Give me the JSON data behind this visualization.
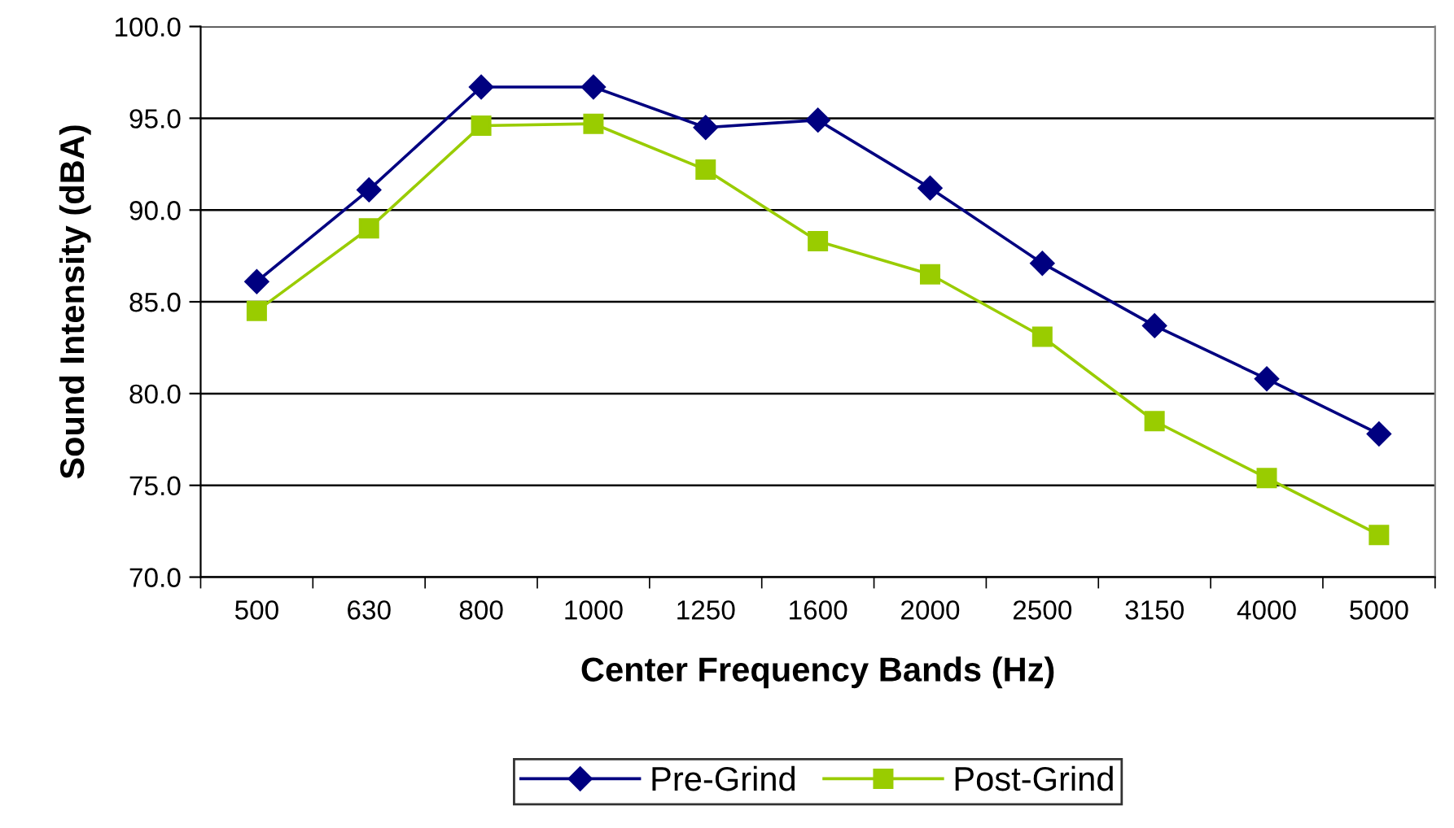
{
  "chart_data": {
    "type": "line",
    "xlabel": "Center Frequency Bands (Hz)",
    "ylabel": "Sound Intensity (dBA)",
    "categories": [
      "500",
      "630",
      "800",
      "1000",
      "1250",
      "1600",
      "2000",
      "2500",
      "3150",
      "4000",
      "5000"
    ],
    "series": [
      {
        "name": "Pre-Grind",
        "color": "#000080",
        "marker": "diamond",
        "values": [
          86.1,
          91.1,
          96.7,
          96.7,
          94.5,
          94.9,
          91.2,
          87.1,
          83.7,
          80.8,
          77.8
        ]
      },
      {
        "name": "Post-Grind",
        "color": "#99cc00",
        "marker": "square",
        "values": [
          84.5,
          89.0,
          94.6,
          94.7,
          92.2,
          88.3,
          86.5,
          83.1,
          78.5,
          75.4,
          72.3
        ]
      }
    ],
    "ylim": [
      70,
      100
    ],
    "yticks": [
      {
        "value": 70,
        "label": "70.0"
      },
      {
        "value": 75,
        "label": "75.0"
      },
      {
        "value": 80,
        "label": "80.0"
      },
      {
        "value": 85,
        "label": "85.0"
      },
      {
        "value": 90,
        "label": "90.0"
      },
      {
        "value": 95,
        "label": "95.0"
      },
      {
        "value": 100,
        "label": "100.0"
      }
    ],
    "grid": "y",
    "legend": "bottom",
    "line_style": "solid"
  }
}
